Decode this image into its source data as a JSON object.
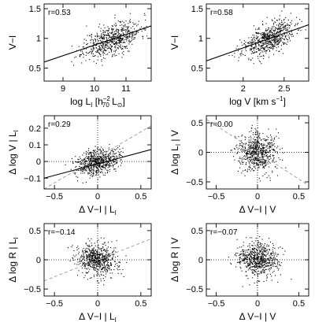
{
  "chart_data": [
    {
      "type": "scatter",
      "id": "p1",
      "annotation": "r=0.53",
      "xlabel": {
        "base": "log L",
        "sub": "I",
        "rest": " [h",
        "sup": "−2",
        "sub2": "70",
        "rest2": " L",
        "sun": "⊙",
        "end": "]"
      },
      "ylabel": "V−I",
      "xlim": [
        8.4,
        11.8
      ],
      "ylim": [
        0.28,
        1.58
      ],
      "xticks": [
        9,
        10,
        11
      ],
      "yticks": [
        0.5,
        1,
        1.5
      ],
      "xtick_labels": [
        "9",
        "10",
        "11"
      ],
      "ytick_labels": [
        "0.5",
        "1",
        "1.5"
      ],
      "cloud": {
        "mx": 10.55,
        "my": 0.98,
        "sx": 0.45,
        "sy": 0.15,
        "rho": 0.53,
        "n": 650,
        "seed": 11
      },
      "fit": {
        "x": [
          8.4,
          11.8
        ],
        "y": [
          0.6,
          1.21
        ]
      },
      "dotted_refs": []
    },
    {
      "type": "scatter",
      "id": "p2",
      "annotation": "r=0.58",
      "xlabel": {
        "text": "log V [km s",
        "sup": "−1",
        "end": "]"
      },
      "ylabel": "V−I",
      "xlim": [
        1.55,
        2.8
      ],
      "ylim": [
        0.28,
        1.58
      ],
      "xticks": [
        2,
        2.5
      ],
      "yticks": [
        0.5,
        1,
        1.5
      ],
      "xtick_labels": [
        "2",
        "2.5"
      ],
      "ytick_labels": [
        "0.5",
        "1",
        "1.5"
      ],
      "cloud": {
        "mx": 2.3,
        "my": 0.98,
        "sx": 0.16,
        "sy": 0.15,
        "rho": 0.58,
        "n": 650,
        "seed": 23
      },
      "fit": {
        "x": [
          1.55,
          2.8
        ],
        "y": [
          0.62,
          1.23
        ]
      },
      "dotted_refs": []
    },
    {
      "type": "scatter",
      "id": "p3",
      "annotation": "r=0.29",
      "xlabel": {
        "text": "Δ V−I | L",
        "sub": "I"
      },
      "ylabel": {
        "text": "Δ log V | L",
        "sub": "I"
      },
      "xlim": [
        -0.62,
        0.62
      ],
      "ylim": [
        -0.165,
        0.275
      ],
      "xticks": [
        -0.5,
        0,
        0.5
      ],
      "yticks": [
        -0.1,
        0,
        0.1,
        0.2
      ],
      "xtick_labels": [
        "−0.5",
        "0",
        "0.5"
      ],
      "ytick_labels": [
        "−0.1",
        "0",
        "0.1",
        "0.2"
      ],
      "cloud": {
        "mx": 0.0,
        "my": 0.0,
        "sx": 0.12,
        "sy": 0.04,
        "rho": 0.29,
        "n": 650,
        "seed": 37
      },
      "fit": {
        "x": [
          -0.62,
          0.62
        ],
        "y": [
          -0.1,
          0.072
        ]
      },
      "dashed_fit": {
        "x": [
          -0.62,
          0.62
        ],
        "y": [
          -0.165,
          0.215
        ]
      },
      "dotted_refs": [
        "x0",
        "y0"
      ]
    },
    {
      "type": "scatter",
      "id": "p4",
      "annotation": "r=0.00",
      "xlabel": {
        "text": "Δ V−I | V"
      },
      "ylabel": {
        "text": "Δ log L",
        "sub": "I",
        "rest": " | V"
      },
      "xlim": [
        -0.62,
        0.62
      ],
      "ylim": [
        -0.62,
        0.62
      ],
      "xticks": [
        -0.5,
        0,
        0.5
      ],
      "yticks": [
        -0.5,
        0,
        0.5
      ],
      "xtick_labels": [
        "−0.5",
        "0",
        "0.5"
      ],
      "ytick_labels": [
        "−0.5",
        "0",
        "0.5"
      ],
      "cloud": {
        "mx": 0.0,
        "my": 0.0,
        "sx": 0.12,
        "sy": 0.17,
        "rho": 0.0,
        "n": 650,
        "seed": 41
      },
      "dashed_fit": {
        "x": [
          -0.62,
          0.62
        ],
        "y": [
          0.56,
          -0.56
        ]
      },
      "dotted_refs": [
        "x0",
        "y0"
      ]
    },
    {
      "type": "scatter",
      "id": "p5",
      "annotation": "r=−0.14",
      "xlabel": {
        "text": "Δ V−I | L",
        "sub": "I"
      },
      "ylabel": {
        "text": "Δ log R | L",
        "sub": "I"
      },
      "xlim": [
        -0.62,
        0.62
      ],
      "ylim": [
        -0.62,
        0.62
      ],
      "xticks": [
        -0.5,
        0,
        0.5
      ],
      "yticks": [
        -0.5,
        0,
        0.5
      ],
      "xtick_labels": [
        "−0.5",
        "0",
        "0.5"
      ],
      "ytick_labels": [
        "−0.5",
        "0",
        "0.5"
      ],
      "cloud": {
        "mx": 0.0,
        "my": 0.0,
        "sx": 0.12,
        "sy": 0.14,
        "rho": -0.14,
        "n": 650,
        "seed": 53
      },
      "dashed_fit": {
        "x": [
          -0.62,
          0.62
        ],
        "y": [
          -0.36,
          0.36
        ]
      },
      "dotted_refs": [
        "x0",
        "y0"
      ]
    },
    {
      "type": "scatter",
      "id": "p6",
      "annotation": "r=−0.07",
      "xlabel": {
        "text": "Δ V−I | V"
      },
      "ylabel": {
        "text": "Δ log R | V"
      },
      "xlim": [
        -0.62,
        0.62
      ],
      "ylim": [
        -0.62,
        0.62
      ],
      "xticks": [
        -0.5,
        0,
        0.5
      ],
      "yticks": [
        -0.5,
        0,
        0.5
      ],
      "xtick_labels": [
        "−0.5",
        "0",
        "0.5"
      ],
      "ytick_labels": [
        "−0.5",
        "0",
        "0.5"
      ],
      "cloud": {
        "mx": 0.0,
        "my": 0.0,
        "sx": 0.12,
        "sy": 0.14,
        "rho": -0.07,
        "n": 650,
        "seed": 67
      },
      "dotted_refs": [
        "x0",
        "y0"
      ]
    }
  ]
}
